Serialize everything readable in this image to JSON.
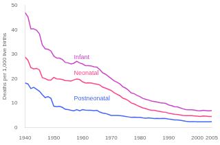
{
  "chart_data": {
    "type": "line",
    "ylabel": "Deaths per 1,000 live births",
    "x": [
      1940,
      1941,
      1942,
      1943,
      1944,
      1945,
      1946,
      1947,
      1948,
      1949,
      1950,
      1951,
      1952,
      1953,
      1954,
      1955,
      1956,
      1957,
      1958,
      1959,
      1960,
      1961,
      1962,
      1963,
      1964,
      1965,
      1966,
      1967,
      1968,
      1969,
      1970,
      1971,
      1972,
      1973,
      1974,
      1975,
      1976,
      1977,
      1978,
      1979,
      1980,
      1981,
      1982,
      1983,
      1984,
      1985,
      1986,
      1987,
      1988,
      1989,
      1990,
      1991,
      1992,
      1993,
      1994,
      1995,
      1996,
      1997,
      1998,
      1999,
      2000,
      2001,
      2002,
      2003,
      2004,
      2005
    ],
    "series": [
      {
        "name": "Infant",
        "color": "#cc44cc",
        "values": [
          47.0,
          45.3,
          40.4,
          40.4,
          39.8,
          38.3,
          33.8,
          32.2,
          32.0,
          31.3,
          29.2,
          28.4,
          28.4,
          27.8,
          26.6,
          26.4,
          26.0,
          26.3,
          27.1,
          26.4,
          26.0,
          25.3,
          25.3,
          25.2,
          24.8,
          24.7,
          23.7,
          22.4,
          21.8,
          20.9,
          20.0,
          19.1,
          18.5,
          17.8,
          16.7,
          16.1,
          15.2,
          14.1,
          13.8,
          13.1,
          12.6,
          11.9,
          11.5,
          11.2,
          10.8,
          10.6,
          10.4,
          10.1,
          10.0,
          9.8,
          9.2,
          8.9,
          8.5,
          8.4,
          8.0,
          7.6,
          7.3,
          7.2,
          7.2,
          7.1,
          6.9,
          6.8,
          7.0,
          6.9,
          6.8,
          6.9
        ]
      },
      {
        "name": "Neonatal",
        "color": "#ff4488",
        "values": [
          28.8,
          27.5,
          24.5,
          24.0,
          24.2,
          23.5,
          20.4,
          20.0,
          19.4,
          19.4,
          20.5,
          19.9,
          19.8,
          19.6,
          19.2,
          19.1,
          19.0,
          19.5,
          19.8,
          19.6,
          18.7,
          18.2,
          18.3,
          18.2,
          17.9,
          17.7,
          17.4,
          16.5,
          16.1,
          15.6,
          15.1,
          14.2,
          13.6,
          13.0,
          12.0,
          11.6,
          10.9,
          10.0,
          9.6,
          9.0,
          8.5,
          8.0,
          7.7,
          7.3,
          7.0,
          7.0,
          6.7,
          6.5,
          6.3,
          6.2,
          5.8,
          5.6,
          5.4,
          5.3,
          5.1,
          4.9,
          4.8,
          4.8,
          4.8,
          4.7,
          4.6,
          4.5,
          4.7,
          4.6,
          4.5,
          4.5
        ]
      },
      {
        "name": "Postneonatal",
        "color": "#4466ff",
        "values": [
          18.2,
          17.8,
          15.9,
          16.4,
          15.6,
          14.8,
          13.4,
          12.2,
          12.6,
          11.9,
          8.7,
          8.5,
          8.6,
          8.2,
          7.4,
          7.3,
          7.0,
          6.8,
          7.3,
          6.8,
          7.3,
          7.1,
          7.0,
          7.0,
          6.9,
          7.0,
          6.3,
          5.9,
          5.7,
          5.3,
          4.9,
          4.9,
          4.9,
          4.8,
          4.7,
          4.5,
          4.3,
          4.1,
          4.2,
          4.1,
          4.1,
          3.9,
          3.8,
          3.9,
          3.8,
          3.6,
          3.7,
          3.6,
          3.7,
          3.6,
          3.4,
          3.3,
          3.1,
          3.1,
          2.9,
          2.7,
          2.5,
          2.4,
          2.4,
          2.4,
          2.3,
          2.3,
          2.3,
          2.3,
          2.3,
          2.4
        ]
      }
    ],
    "annotations": [
      {
        "text": "Infant",
        "x": 1957,
        "y": 27.5,
        "color": "#cc44cc"
      },
      {
        "text": "Neonatal",
        "x": 1957,
        "y": 21.0,
        "color": "#ff4488"
      },
      {
        "text": "Postneonatal",
        "x": 1957,
        "y": 10.5,
        "color": "#4466ff"
      }
    ],
    "xlim": [
      1940,
      2005
    ],
    "xticks": [
      1940,
      1950,
      1960,
      1970,
      1980,
      1990,
      2000,
      2005
    ],
    "ylim": [
      0,
      50
    ],
    "yticks": [
      0,
      10,
      20,
      30,
      40,
      50
    ],
    "grid": false
  }
}
